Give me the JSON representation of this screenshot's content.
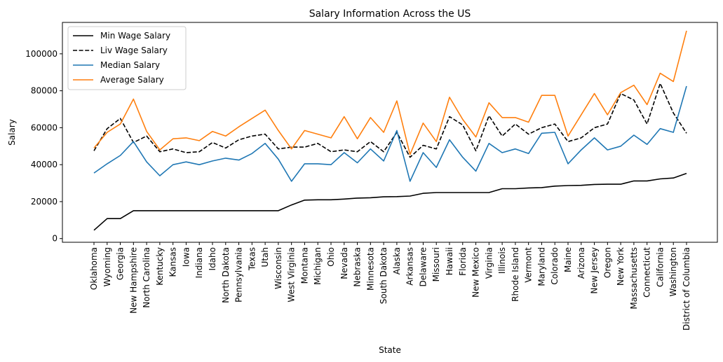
{
  "chart_data": {
    "type": "line",
    "title": "Salary Information Across the US",
    "xlabel": "State",
    "ylabel": "Salary",
    "ylim": [
      -2000,
      117000
    ],
    "yticks": [
      0,
      20000,
      40000,
      60000,
      80000,
      100000
    ],
    "grid": false,
    "legend_position": "top-left",
    "categories": [
      "Oklahoma",
      "Wyoming",
      "Georgia",
      "New Hampshire",
      "North Carolina",
      "Kentucky",
      "Kansas",
      "Iowa",
      "Indiana",
      "Idaho",
      "North Dakota",
      "Pennsylvania",
      "Texas",
      "Utah",
      "Wisconsin",
      "West Virginia",
      "Montana",
      "Michigan",
      "Ohio",
      "Nevada",
      "Nebraska",
      "Minnesota",
      "South Dakota",
      "Alaska",
      "Arkansas",
      "Delaware",
      "Missouri",
      "Hawaii",
      "Florida",
      "New Mexico",
      "Virginia",
      "Illinois",
      "Rhode Island",
      "Vermont",
      "Maryland",
      "Colorado",
      "Maine",
      "Arizona",
      "New Jersey",
      "Oregon",
      "New York",
      "Massachusetts",
      "Connecticut",
      "California",
      "Washington",
      "District of Columbia"
    ],
    "series": [
      {
        "name": "Min Wage Salary",
        "color": "#000000",
        "dash": "solid",
        "values": [
          4500,
          10800,
          10800,
          15100,
          15100,
          15100,
          15100,
          15100,
          15100,
          15100,
          15100,
          15100,
          15100,
          15100,
          15100,
          18200,
          20800,
          21000,
          21000,
          21400,
          21900,
          22100,
          22600,
          22700,
          23000,
          24500,
          24900,
          24900,
          24900,
          24900,
          24900,
          27000,
          27000,
          27400,
          27600,
          28400,
          28700,
          28800,
          29300,
          29400,
          29400,
          31200,
          31200,
          32300,
          32800,
          35300
        ]
      },
      {
        "name": "Liv Wage Salary",
        "color": "#000000",
        "dash": "dashed",
        "values": [
          47500,
          59500,
          65000,
          52000,
          55500,
          47000,
          48500,
          46500,
          47000,
          52000,
          49000,
          53500,
          55500,
          56500,
          48500,
          49500,
          49500,
          51500,
          47000,
          48000,
          47000,
          52500,
          47000,
          57500,
          44000,
          50500,
          48500,
          66000,
          61500,
          47500,
          66500,
          55500,
          62000,
          56500,
          60000,
          62000,
          52500,
          54500,
          60000,
          62000,
          78500,
          75000,
          62000,
          84000,
          68000,
          57000
        ]
      },
      {
        "name": "Median Salary",
        "color": "#1f77b4",
        "dash": "solid",
        "values": [
          35500,
          40500,
          45000,
          52500,
          41500,
          34000,
          40000,
          41500,
          40000,
          42000,
          43500,
          42500,
          46000,
          51500,
          43000,
          31000,
          40500,
          40500,
          40000,
          46500,
          41000,
          48500,
          42000,
          58500,
          31000,
          46500,
          38500,
          53500,
          44000,
          36500,
          51500,
          46500,
          48500,
          46000,
          57000,
          57500,
          40500,
          48000,
          54500,
          48000,
          50000,
          56000,
          51000,
          59500,
          57500,
          82500
        ]
      },
      {
        "name": "Average Salary",
        "color": "#ff7f0e",
        "dash": "solid",
        "values": [
          49000,
          57500,
          62000,
          75500,
          58000,
          48000,
          54000,
          54500,
          53000,
          58000,
          55500,
          60500,
          65000,
          69500,
          58500,
          48500,
          58500,
          56500,
          54500,
          66000,
          54000,
          65500,
          57500,
          74500,
          45500,
          62500,
          52500,
          76500,
          64500,
          55000,
          73500,
          65500,
          65500,
          63000,
          77500,
          77500,
          55500,
          67000,
          78500,
          67000,
          79000,
          83000,
          72500,
          89500,
          85000,
          112500
        ]
      }
    ]
  }
}
